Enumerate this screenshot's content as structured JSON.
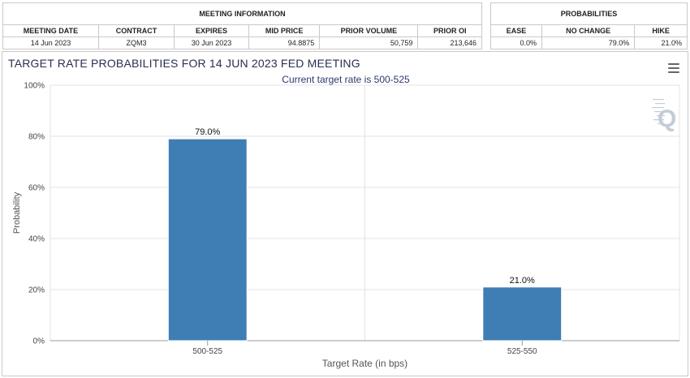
{
  "meeting_info": {
    "group_title": "MEETING INFORMATION",
    "columns": [
      "MEETING DATE",
      "CONTRACT",
      "EXPIRES",
      "MID PRICE",
      "PRIOR VOLUME",
      "PRIOR OI"
    ],
    "row": [
      "14 Jun 2023",
      "ZQM3",
      "30 Jun 2023",
      "94.8875",
      "50,759",
      "213,646"
    ]
  },
  "probabilities": {
    "group_title": "PROBABILITIES",
    "columns": [
      "EASE",
      "NO CHANGE",
      "HIKE"
    ],
    "row": [
      "0.0%",
      "79.0%",
      "21.0%"
    ]
  },
  "chart_data": {
    "type": "bar",
    "title": "TARGET RATE PROBABILITIES FOR 14 JUN 2023 FED MEETING",
    "subtitle": "Current target rate is 500-525",
    "xlabel": "Target Rate (in bps)",
    "ylabel": "Probability",
    "categories": [
      "500-525",
      "525-550"
    ],
    "values": [
      79.0,
      21.0
    ],
    "data_labels": [
      "79.0%",
      "21.0%"
    ],
    "ylim": [
      0,
      100
    ],
    "yticks": [
      0,
      20,
      40,
      60,
      80,
      100
    ],
    "ytick_labels": [
      "0%",
      "20%",
      "40%",
      "60%",
      "80%",
      "100%"
    ],
    "grid": true,
    "bar_color": "#3f7db5"
  },
  "icons": {
    "menu": "hamburger-menu-icon",
    "watermark": "q-logo-icon"
  }
}
